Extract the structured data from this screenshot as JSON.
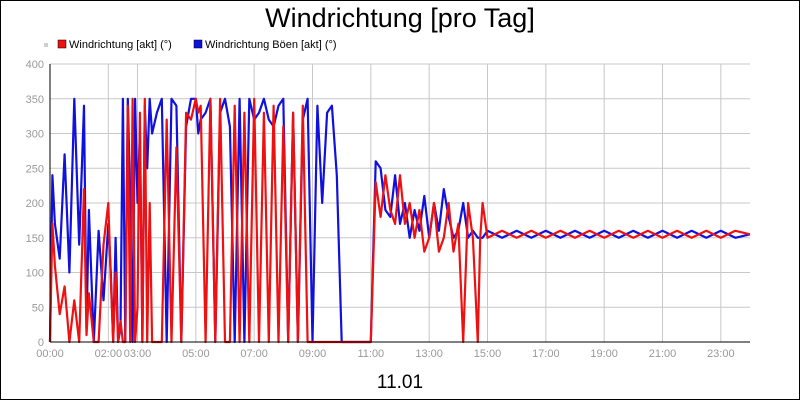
{
  "chart_data": {
    "type": "line",
    "title": "Windrichtung [pro Tag]",
    "date_label": "11.01",
    "ylim": [
      0,
      400
    ],
    "yticks": [
      "0",
      "50",
      "100",
      "150",
      "200",
      "250",
      "300",
      "350",
      "400"
    ],
    "xlim": [
      "00:00",
      "24:00"
    ],
    "xticks": [
      "00:00",
      "02:00",
      "03:00",
      "05:00",
      "07:00",
      "09:00",
      "11:00",
      "13:00",
      "15:00",
      "17:00",
      "19:00",
      "21:00",
      "23:00"
    ],
    "grid": true,
    "legend": "top-left",
    "colors": {
      "series1": "#ee1111",
      "series2": "#1111dd",
      "grid": "#c8c8c8"
    },
    "series": [
      {
        "name": "Windrichtung [akt] (°)",
        "x": [
          "00:00",
          "00:05",
          "00:10",
          "00:20",
          "00:30",
          "00:40",
          "00:50",
          "01:00",
          "01:10",
          "01:15",
          "01:20",
          "01:30",
          "01:40",
          "01:50",
          "02:00",
          "02:05",
          "02:10",
          "02:15",
          "02:20",
          "02:25",
          "02:30",
          "02:35",
          "02:40",
          "02:45",
          "02:50",
          "02:55",
          "03:00",
          "03:05",
          "03:10",
          "03:15",
          "03:20",
          "03:25",
          "03:30",
          "03:40",
          "03:50",
          "04:00",
          "04:10",
          "04:20",
          "04:30",
          "04:40",
          "04:50",
          "05:00",
          "05:05",
          "05:10",
          "05:20",
          "05:30",
          "05:40",
          "05:50",
          "06:00",
          "06:10",
          "06:20",
          "06:30",
          "06:40",
          "06:50",
          "07:00",
          "07:10",
          "07:20",
          "07:30",
          "07:40",
          "07:50",
          "08:00",
          "08:10",
          "08:20",
          "08:30",
          "08:40",
          "08:50",
          "09:00",
          "09:10",
          "09:20",
          "09:30",
          "09:40",
          "09:50",
          "10:00",
          "10:30",
          "11:00",
          "11:10",
          "11:20",
          "11:30",
          "11:40",
          "11:50",
          "12:00",
          "12:10",
          "12:20",
          "12:30",
          "12:40",
          "12:50",
          "13:00",
          "13:10",
          "13:20",
          "13:30",
          "13:40",
          "13:50",
          "14:00",
          "14:10",
          "14:20",
          "14:30",
          "14:40",
          "14:45",
          "14:50",
          "15:00",
          "15:30",
          "16:00",
          "16:30",
          "17:00",
          "17:30",
          "18:00",
          "18:30",
          "19:00",
          "19:30",
          "20:00",
          "20:30",
          "21:00",
          "21:30",
          "22:00",
          "22:30",
          "23:00",
          "23:30",
          "24:00"
        ],
        "values": [
          0,
          170,
          110,
          40,
          80,
          0,
          60,
          0,
          220,
          10,
          70,
          0,
          0,
          140,
          200,
          90,
          0,
          100,
          0,
          30,
          0,
          0,
          340,
          0,
          350,
          0,
          50,
          330,
          0,
          350,
          0,
          200,
          0,
          0,
          0,
          320,
          0,
          280,
          0,
          330,
          320,
          350,
          330,
          340,
          0,
          350,
          0,
          350,
          0,
          0,
          340,
          0,
          330,
          0,
          350,
          0,
          330,
          0,
          340,
          0,
          310,
          0,
          330,
          0,
          340,
          0,
          0,
          0,
          0,
          0,
          0,
          0,
          0,
          0,
          0,
          230,
          180,
          240,
          190,
          170,
          240,
          170,
          200,
          150,
          190,
          130,
          150,
          200,
          130,
          150,
          200,
          130,
          170,
          0,
          200,
          150,
          0,
          150,
          200,
          150,
          160,
          150,
          160,
          150,
          160,
          150,
          160,
          150,
          160,
          150,
          160,
          150,
          160,
          150,
          160,
          150,
          160,
          155
        ]
      },
      {
        "name": "Windrichtung Böen [akt] (°)",
        "x": [
          "00:00",
          "00:05",
          "00:10",
          "00:20",
          "00:30",
          "00:40",
          "00:50",
          "01:00",
          "01:10",
          "01:15",
          "01:20",
          "01:30",
          "01:40",
          "01:50",
          "02:00",
          "02:05",
          "02:10",
          "02:15",
          "02:20",
          "02:25",
          "02:30",
          "02:35",
          "02:40",
          "02:45",
          "02:50",
          "02:55",
          "03:00",
          "03:05",
          "03:10",
          "03:15",
          "03:20",
          "03:25",
          "03:30",
          "03:40",
          "03:50",
          "04:00",
          "04:10",
          "04:20",
          "04:30",
          "04:40",
          "04:50",
          "05:00",
          "05:05",
          "05:10",
          "05:20",
          "05:30",
          "05:40",
          "05:50",
          "06:00",
          "06:10",
          "06:20",
          "06:30",
          "06:40",
          "06:50",
          "07:00",
          "07:10",
          "07:20",
          "07:30",
          "07:40",
          "07:50",
          "08:00",
          "08:10",
          "08:20",
          "08:30",
          "08:40",
          "08:50",
          "09:00",
          "09:10",
          "09:20",
          "09:30",
          "09:40",
          "09:50",
          "10:00",
          "10:30",
          "11:00",
          "11:10",
          "11:20",
          "11:30",
          "11:40",
          "11:50",
          "12:00",
          "12:10",
          "12:20",
          "12:30",
          "12:40",
          "12:50",
          "13:00",
          "13:10",
          "13:20",
          "13:30",
          "13:40",
          "13:50",
          "14:00",
          "14:10",
          "14:20",
          "14:30",
          "14:40",
          "14:45",
          "14:50",
          "15:00",
          "15:30",
          "16:00",
          "16:30",
          "17:00",
          "17:30",
          "18:00",
          "18:30",
          "19:00",
          "19:30",
          "20:00",
          "20:30",
          "21:00",
          "21:30",
          "22:00",
          "22:30",
          "23:00",
          "23:30",
          "24:00"
        ],
        "values": [
          0,
          240,
          170,
          120,
          270,
          100,
          350,
          140,
          340,
          20,
          190,
          0,
          160,
          60,
          170,
          100,
          0,
          150,
          0,
          20,
          350,
          0,
          350,
          210,
          0,
          350,
          200,
          300,
          0,
          340,
          250,
          350,
          300,
          330,
          350,
          0,
          350,
          340,
          0,
          310,
          350,
          350,
          300,
          320,
          330,
          350,
          0,
          330,
          350,
          310,
          0,
          350,
          0,
          350,
          320,
          330,
          350,
          320,
          310,
          340,
          350,
          0,
          330,
          0,
          320,
          350,
          0,
          340,
          200,
          330,
          340,
          240,
          0,
          0,
          0,
          260,
          250,
          190,
          180,
          240,
          170,
          200,
          150,
          190,
          160,
          210,
          150,
          200,
          160,
          220,
          180,
          150,
          160,
          200,
          150,
          160,
          150,
          150,
          150,
          160,
          150,
          160,
          150,
          160,
          150,
          160,
          150,
          160,
          150,
          160,
          150,
          160,
          150,
          160,
          150,
          160,
          150,
          155
        ]
      }
    ]
  }
}
